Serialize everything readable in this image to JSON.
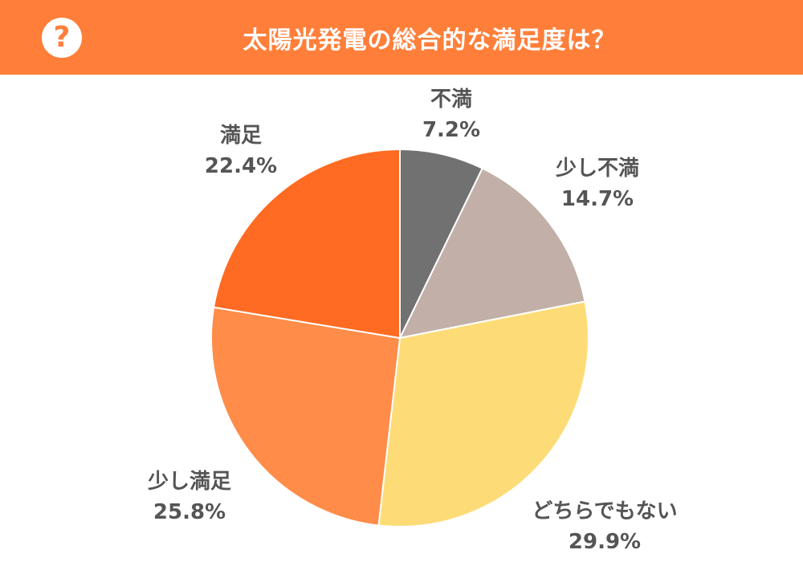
{
  "header": {
    "icon": "question-icon",
    "icon_glyph": "?",
    "title": "太陽光発電の総合的な満足度は？",
    "background": "#ff7f3a"
  },
  "chart_data": {
    "type": "pie",
    "title": "太陽光発電の総合的な満足度は？",
    "slices": [
      {
        "label": "不満",
        "value": 7.2,
        "value_text": "7.2%",
        "color": "#717171"
      },
      {
        "label": "少し不満",
        "value": 14.7,
        "value_text": "14.7%",
        "color": "#c2b0a8"
      },
      {
        "label": "どちらでもない",
        "value": 29.9,
        "value_text": "29.9%",
        "color": "#fddc78"
      },
      {
        "label": "少し満足",
        "value": 25.8,
        "value_text": "25.8%",
        "color": "#ff8c48"
      },
      {
        "label": "満足",
        "value": 22.4,
        "value_text": "22.4%",
        "color": "#ff6b22"
      }
    ],
    "start_angle": "12 o'clock",
    "direction": "clockwise"
  }
}
